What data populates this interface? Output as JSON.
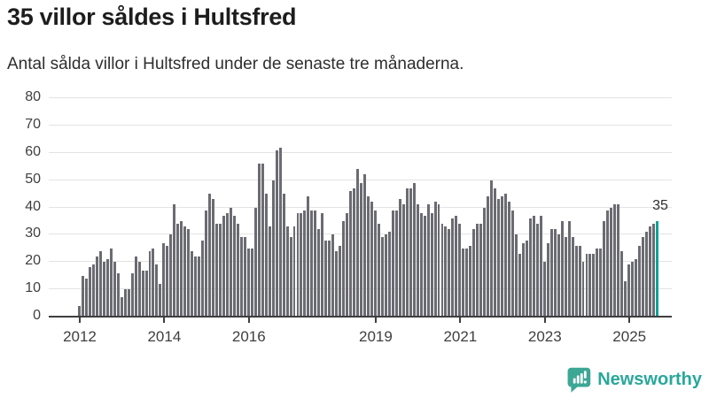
{
  "header": {
    "title": "35 villor såldes i Hultsfred",
    "subtitle": "Antal sålda villor i Hultsfred under de senaste tre månaderna."
  },
  "chart_data": {
    "type": "bar",
    "title": "35 villor såldes i Hultsfred",
    "subtitle": "Antal sålda villor i Hultsfred under de senaste tre månaderna.",
    "ylim": [
      0,
      80
    ],
    "yticks": [
      0,
      10,
      20,
      30,
      40,
      50,
      60,
      70,
      80
    ],
    "grid": "horizontal",
    "values": [
      4,
      15,
      14,
      18,
      19,
      22,
      24,
      20,
      21,
      25,
      20,
      16,
      7,
      10,
      10,
      16,
      22,
      20,
      17,
      17,
      24,
      25,
      19,
      12,
      27,
      26,
      30,
      41,
      34,
      35,
      33,
      32,
      24,
      22,
      22,
      28,
      39,
      45,
      43,
      34,
      34,
      37,
      38,
      40,
      37,
      34,
      29,
      29,
      25,
      25,
      40,
      56,
      56,
      45,
      33,
      50,
      61,
      62,
      45,
      33,
      29,
      33,
      38,
      38,
      39,
      44,
      39,
      39,
      32,
      38,
      28,
      28,
      30,
      24,
      26,
      35,
      38,
      46,
      47,
      54,
      49,
      52,
      44,
      42,
      39,
      34,
      29,
      30,
      31,
      39,
      39,
      43,
      41,
      47,
      47,
      49,
      41,
      38,
      37,
      41,
      38,
      42,
      41,
      34,
      33,
      32,
      36,
      37,
      34,
      25,
      25,
      26,
      32,
      34,
      34,
      40,
      44,
      50,
      47,
      43,
      44,
      45,
      42,
      39,
      30,
      23,
      27,
      28,
      36,
      37,
      34,
      37,
      20,
      27,
      32,
      32,
      30,
      35,
      29,
      35,
      29,
      26,
      26,
      20,
      23,
      23,
      23,
      25,
      25,
      35,
      39,
      40,
      41,
      41,
      24,
      13,
      19,
      20,
      21,
      26,
      29,
      31,
      33,
      34,
      35
    ],
    "xticks": [
      {
        "label": "2012",
        "index": 0
      },
      {
        "label": "2014",
        "index": 24
      },
      {
        "label": "2016",
        "index": 48
      },
      {
        "label": "2019",
        "index": 84
      },
      {
        "label": "2021",
        "index": 108
      },
      {
        "label": "2023",
        "index": 132
      },
      {
        "label": "2025",
        "index": 156
      }
    ],
    "bar_color": "#6b6b72",
    "highlight_color": "#10a39c",
    "highlight_index": 164,
    "annotation": {
      "text": "35"
    }
  },
  "footer": {
    "brand": "Newsworthy",
    "brand_color": "#2aa79b",
    "icon_color": "#3ca795"
  }
}
